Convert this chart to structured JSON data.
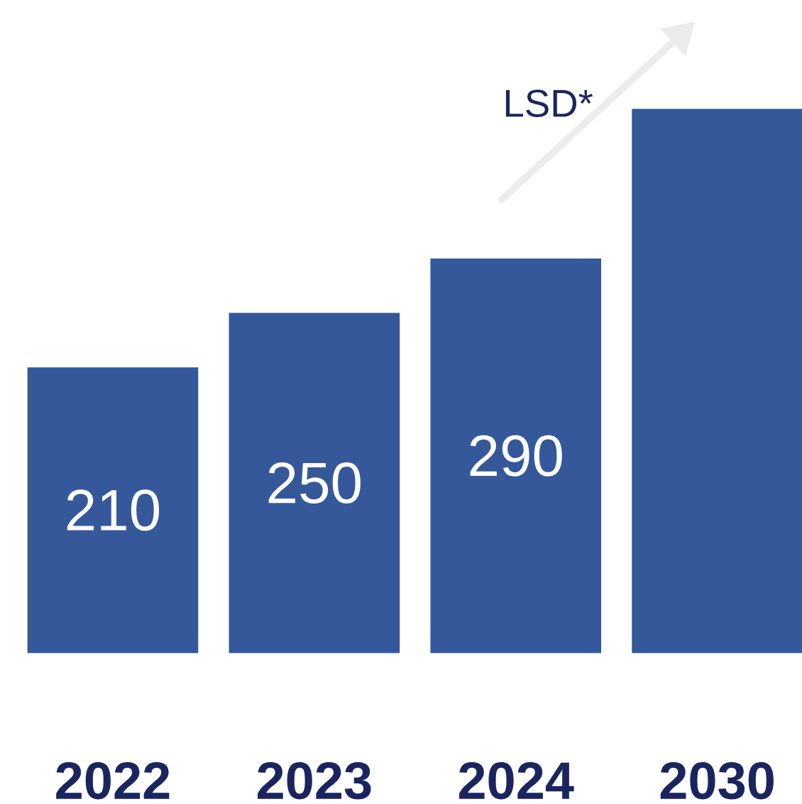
{
  "chart_data": {
    "type": "bar",
    "categories": [
      "2022",
      "2023",
      "2024",
      "2030"
    ],
    "values": [
      210,
      250,
      290,
      400
    ],
    "value_labels": [
      "210",
      "250",
      "290",
      null
    ],
    "color": "#34589a",
    "annotations": [
      "LSD*"
    ]
  }
}
